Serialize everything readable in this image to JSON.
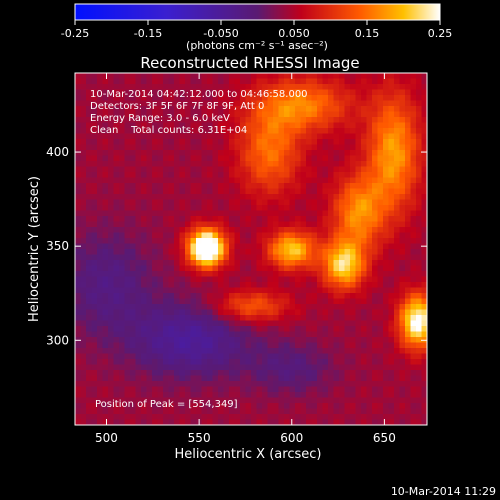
{
  "chart_data": {
    "type": "heatmap",
    "title": "Reconstructed RHESSI Image",
    "xlabel": "Heliocentric X (arcsec)",
    "ylabel": "Heliocentric Y (arcsec)",
    "xlim": [
      483,
      673
    ],
    "ylim": [
      255,
      442
    ],
    "x_ticks": [
      500,
      550,
      600,
      650
    ],
    "y_ticks": [
      300,
      350,
      400
    ],
    "colorbar": {
      "min": -0.25,
      "max": 0.25,
      "tick_values": [
        -0.25,
        -0.15,
        -0.05,
        0.05,
        0.15,
        0.25
      ],
      "tick_labels": [
        "-0.25",
        "-0.15",
        "-0.050",
        "0.050",
        "0.15",
        "0.25"
      ],
      "unit_label": "(photons cm⁻² s⁻¹ asec⁻²)"
    },
    "annotations": [
      "10-Mar-2014 04:42:12.000 to 04:46:58.000",
      "Detectors: 3F 5F 6F 7F 8F 9F, Att 0",
      "Energy Range: 3.0 - 6.0 keV",
      "Clean    Total counts: 6.31E+04"
    ],
    "peak_text": "Position of Peak = [554,349]",
    "sources": [
      {
        "x": 554,
        "y": 349,
        "amp": 0.3,
        "sx": 7,
        "sy": 7
      },
      {
        "x": 600,
        "y": 348,
        "amp": 0.17,
        "sx": 9,
        "sy": 7
      },
      {
        "x": 628,
        "y": 340,
        "amp": 0.18,
        "sx": 8,
        "sy": 9
      },
      {
        "x": 636,
        "y": 368,
        "amp": 0.13,
        "sx": 10,
        "sy": 14
      },
      {
        "x": 668,
        "y": 310,
        "amp": 0.22,
        "sx": 7,
        "sy": 10
      },
      {
        "x": 655,
        "y": 400,
        "amp": 0.14,
        "sx": 10,
        "sy": 22
      },
      {
        "x": 578,
        "y": 318,
        "amp": 0.1,
        "sx": 14,
        "sy": 6
      },
      {
        "x": 588,
        "y": 400,
        "amp": 0.11,
        "sx": 12,
        "sy": 16
      },
      {
        "x": 606,
        "y": 425,
        "amp": 0.12,
        "sx": 18,
        "sy": 10
      },
      {
        "x": 545,
        "y": 300,
        "amp": -0.09,
        "sx": 22,
        "sy": 14
      },
      {
        "x": 500,
        "y": 330,
        "amp": -0.06,
        "sx": 18,
        "sy": 20
      },
      {
        "x": 600,
        "y": 285,
        "amp": -0.05,
        "sx": 16,
        "sy": 10
      }
    ]
  },
  "footer": {
    "timestamp": "10-Mar-2014 11:29"
  }
}
